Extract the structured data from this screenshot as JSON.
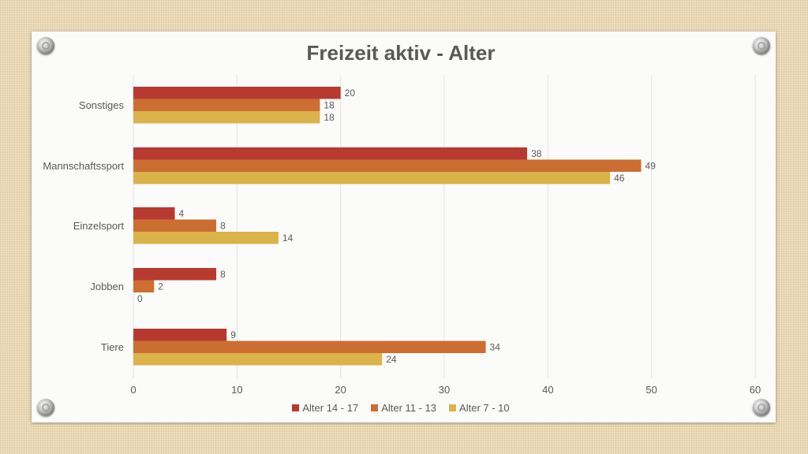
{
  "chart_data": {
    "type": "bar",
    "orientation": "horizontal",
    "title": "Freizeit aktiv - Alter",
    "categories": [
      "Sonstiges",
      "Mannschaftssport",
      "Einzelsport",
      "Jobben",
      "Tiere"
    ],
    "series": [
      {
        "name": "Alter 14 - 17",
        "color": "#b73a31",
        "values": [
          20,
          38,
          4,
          8,
          9
        ]
      },
      {
        "name": "Alter 11 - 13",
        "color": "#cc6e31",
        "values": [
          18,
          49,
          8,
          2,
          34
        ]
      },
      {
        "name": "Alter 7 - 10",
        "color": "#dbb34b",
        "values": [
          18,
          46,
          14,
          0,
          24
        ]
      }
    ],
    "xlim": [
      0,
      60
    ],
    "xticks": [
      0,
      10,
      20,
      30,
      40,
      50,
      60
    ],
    "grid": true,
    "legend_position": "bottom",
    "data_labels": true
  }
}
